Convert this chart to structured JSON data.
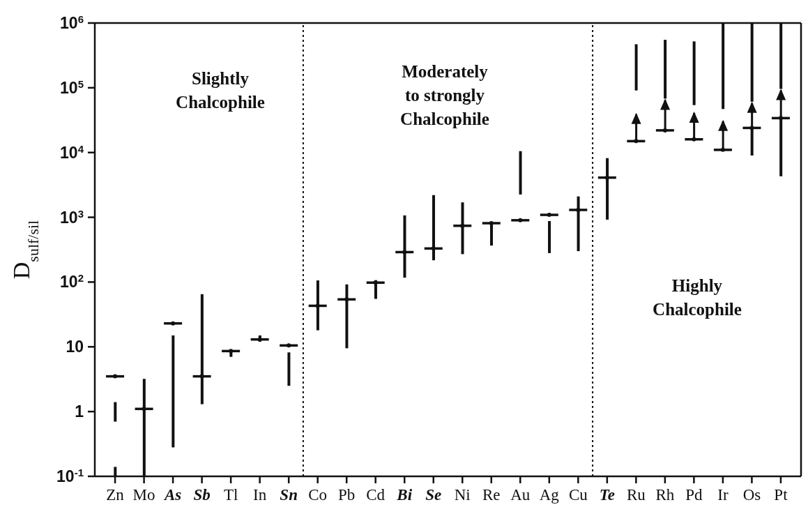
{
  "chart_data": {
    "type": "bar",
    "categories": [
      "Zn",
      "Mo",
      "As",
      "Sb",
      "Tl",
      "In",
      "Sn",
      "Co",
      "Pb",
      "Cd",
      "Bi",
      "Se",
      "Ni",
      "Re",
      "Au",
      "Ag",
      "Cu",
      "Te",
      "Ru",
      "Rh",
      "Pd",
      "Ir",
      "Os",
      "Pt"
    ],
    "ylabel": "D$_{sulf/sil}$",
    "log": true,
    "ylim": [
      0.1,
      1000000
    ],
    "yticks": [
      {
        "value": 0.1,
        "label": "10$^{-1}$"
      },
      1,
      10,
      {
        "value": 100,
        "label": "10$^{2}$"
      },
      {
        "value": 1000,
        "label": "10$^{3}$"
      },
      {
        "value": 10000,
        "label": "10$^{4}$"
      },
      {
        "value": 100000,
        "label": "10$^{5}$"
      },
      {
        "value": 1000000,
        "label": "10$^{6}$"
      }
    ],
    "series": [
      {
        "color": "#111111",
        "base": [
          0.7,
          0.1,
          0.28,
          1.3,
          7,
          12,
          2.5,
          18,
          9.5,
          55,
          117,
          217,
          270,
          366,
          2250,
          280,
          300,
          920,
          91000,
          68000,
          54000,
          47000,
          9000,
          4300
        ],
        "values": [
          0.7,
          3.1,
          14.72,
          63.7,
          1.6,
          3,
          5.7,
          88,
          82.5,
          52,
          953,
          1983,
          1430,
          445,
          8250,
          595,
          1800,
          7280,
          379000,
          482000,
          466000,
          953000,
          15000,
          29700
        ]
      },
      {
        "color": "#111111",
        "base": [
          0.1,
          null,
          null,
          null,
          null,
          null,
          null,
          null,
          null,
          null,
          null,
          null,
          null,
          null,
          null,
          null,
          null,
          null,
          null,
          null,
          null,
          null,
          61000,
          96000
        ],
        "values": [
          0.04,
          null,
          null,
          null,
          null,
          null,
          null,
          null,
          null,
          null,
          null,
          null,
          null,
          null,
          null,
          null,
          null,
          null,
          null,
          null,
          null,
          null,
          939000,
          904000
        ]
      },
      {
        "color": "#111111",
        "marker": "triangle",
        "base": [
          null,
          null,
          null,
          null,
          null,
          null,
          null,
          null,
          null,
          null,
          null,
          null,
          null,
          null,
          null,
          null,
          null,
          null,
          15000,
          22000,
          16000,
          11000,
          24000,
          34000
        ],
        "values": [
          null,
          null,
          null,
          null,
          null,
          null,
          null,
          null,
          null,
          null,
          null,
          null,
          null,
          null,
          null,
          null,
          null,
          null,
          26000,
          46000,
          27000,
          21000,
          37000,
          62000
        ]
      },
      {
        "type": "scatter",
        "color": "#111111",
        "values": [
          3.5,
          1.1,
          23,
          3.5,
          8.6,
          13,
          10.5,
          43,
          54,
          98,
          290,
          330,
          740,
          811,
          900,
          1090,
          1300,
          4100,
          15000,
          22000,
          16000,
          11000,
          24000,
          34000
        ]
      }
    ],
    "annotations": [
      "Slightly\nChalcophile",
      "Moderately\nto strongly\nChalcophile",
      "Highly\nChalcophile"
    ]
  }
}
